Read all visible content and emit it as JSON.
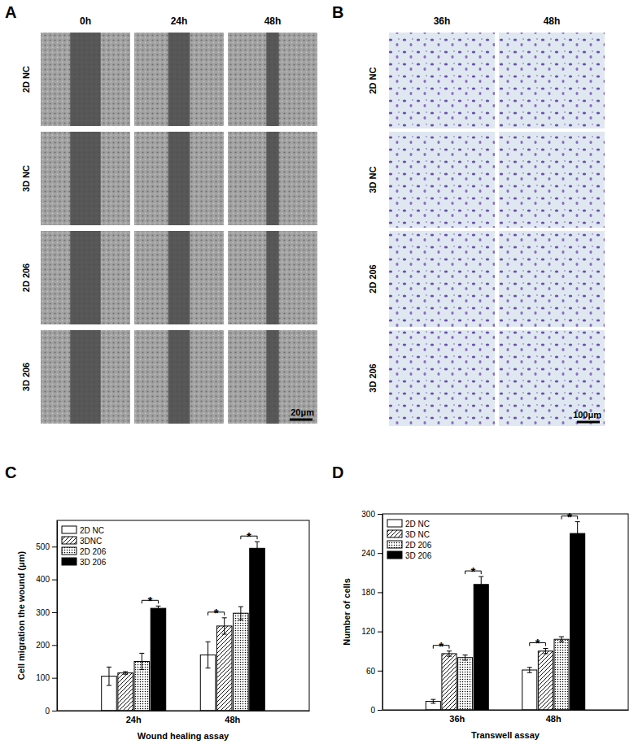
{
  "image_panels": [
    {
      "label": "A",
      "columns": [
        "0h",
        "24h",
        "48h"
      ],
      "rows": [
        "2D NC",
        "3D NC",
        "2D 206",
        "3D 206"
      ],
      "scale_bar": "20μm"
    },
    {
      "label": "B",
      "columns": [
        "36h",
        "48h"
      ],
      "rows": [
        "2D NC",
        "3D NC",
        "2D 206",
        "3D 206"
      ],
      "scale_bar": "100μm"
    }
  ],
  "chart_data": [
    {
      "type": "bar",
      "title": "C",
      "x_label": "Wound healing assay",
      "y_label": "Cell migration the wound (μm)",
      "categories": [
        "24h",
        "48h"
      ],
      "series": [
        {
          "name": "2D NC",
          "color": "#ffffff",
          "values": [
            105,
            170
          ],
          "errors": [
            28,
            40
          ]
        },
        {
          "name": "3DNC",
          "color": "#ffffff",
          "values": [
            115,
            258
          ],
          "errors": [
            4,
            25
          ]
        },
        {
          "name": "2D 206",
          "color": "#ffffff",
          "values": [
            150,
            297
          ],
          "errors": [
            25,
            20
          ]
        },
        {
          "name": "3D 206",
          "color": "#000000",
          "values": [
            312,
            495
          ],
          "errors": [
            7,
            20
          ]
        }
      ],
      "ylim": [
        0,
        580
      ],
      "yticks": [
        0,
        100,
        200,
        300,
        400,
        500
      ],
      "legend": "upper left",
      "significance": [
        {
          "label": "*",
          "category": 0,
          "series": [
            2,
            3
          ]
        },
        {
          "label": "*",
          "category": 1,
          "series": [
            0,
            1
          ]
        },
        {
          "label": "*",
          "category": 1,
          "series": [
            2,
            3
          ]
        }
      ]
    },
    {
      "type": "bar",
      "title": "D",
      "x_label": "Transwell assay",
      "y_label": "Number of cells",
      "categories": [
        "36h",
        "48h"
      ],
      "series": [
        {
          "name": "2D NC",
          "color": "#ffffff",
          "values": [
            13,
            61
          ],
          "errors": [
            3,
            4
          ]
        },
        {
          "name": "3D NC",
          "color": "#ffffff",
          "values": [
            86,
            90
          ],
          "errors": [
            4,
            4
          ]
        },
        {
          "name": "2D 206",
          "color": "#ffffff",
          "values": [
            80,
            108
          ],
          "errors": [
            4,
            4
          ]
        },
        {
          "name": "3D 206",
          "color": "#000000",
          "values": [
            192,
            270
          ],
          "errors": [
            12,
            18
          ]
        }
      ],
      "ylim": [
        0,
        300
      ],
      "yticks": [
        0,
        60,
        120,
        180,
        240,
        300
      ],
      "legend": "upper left",
      "significance": [
        {
          "label": "*",
          "category": 0,
          "series": [
            0,
            1
          ]
        },
        {
          "label": "*",
          "category": 0,
          "series": [
            2,
            3
          ]
        },
        {
          "label": "*",
          "category": 1,
          "series": [
            0,
            1
          ]
        },
        {
          "label": "*",
          "category": 1,
          "series": [
            2,
            3
          ]
        }
      ]
    }
  ]
}
